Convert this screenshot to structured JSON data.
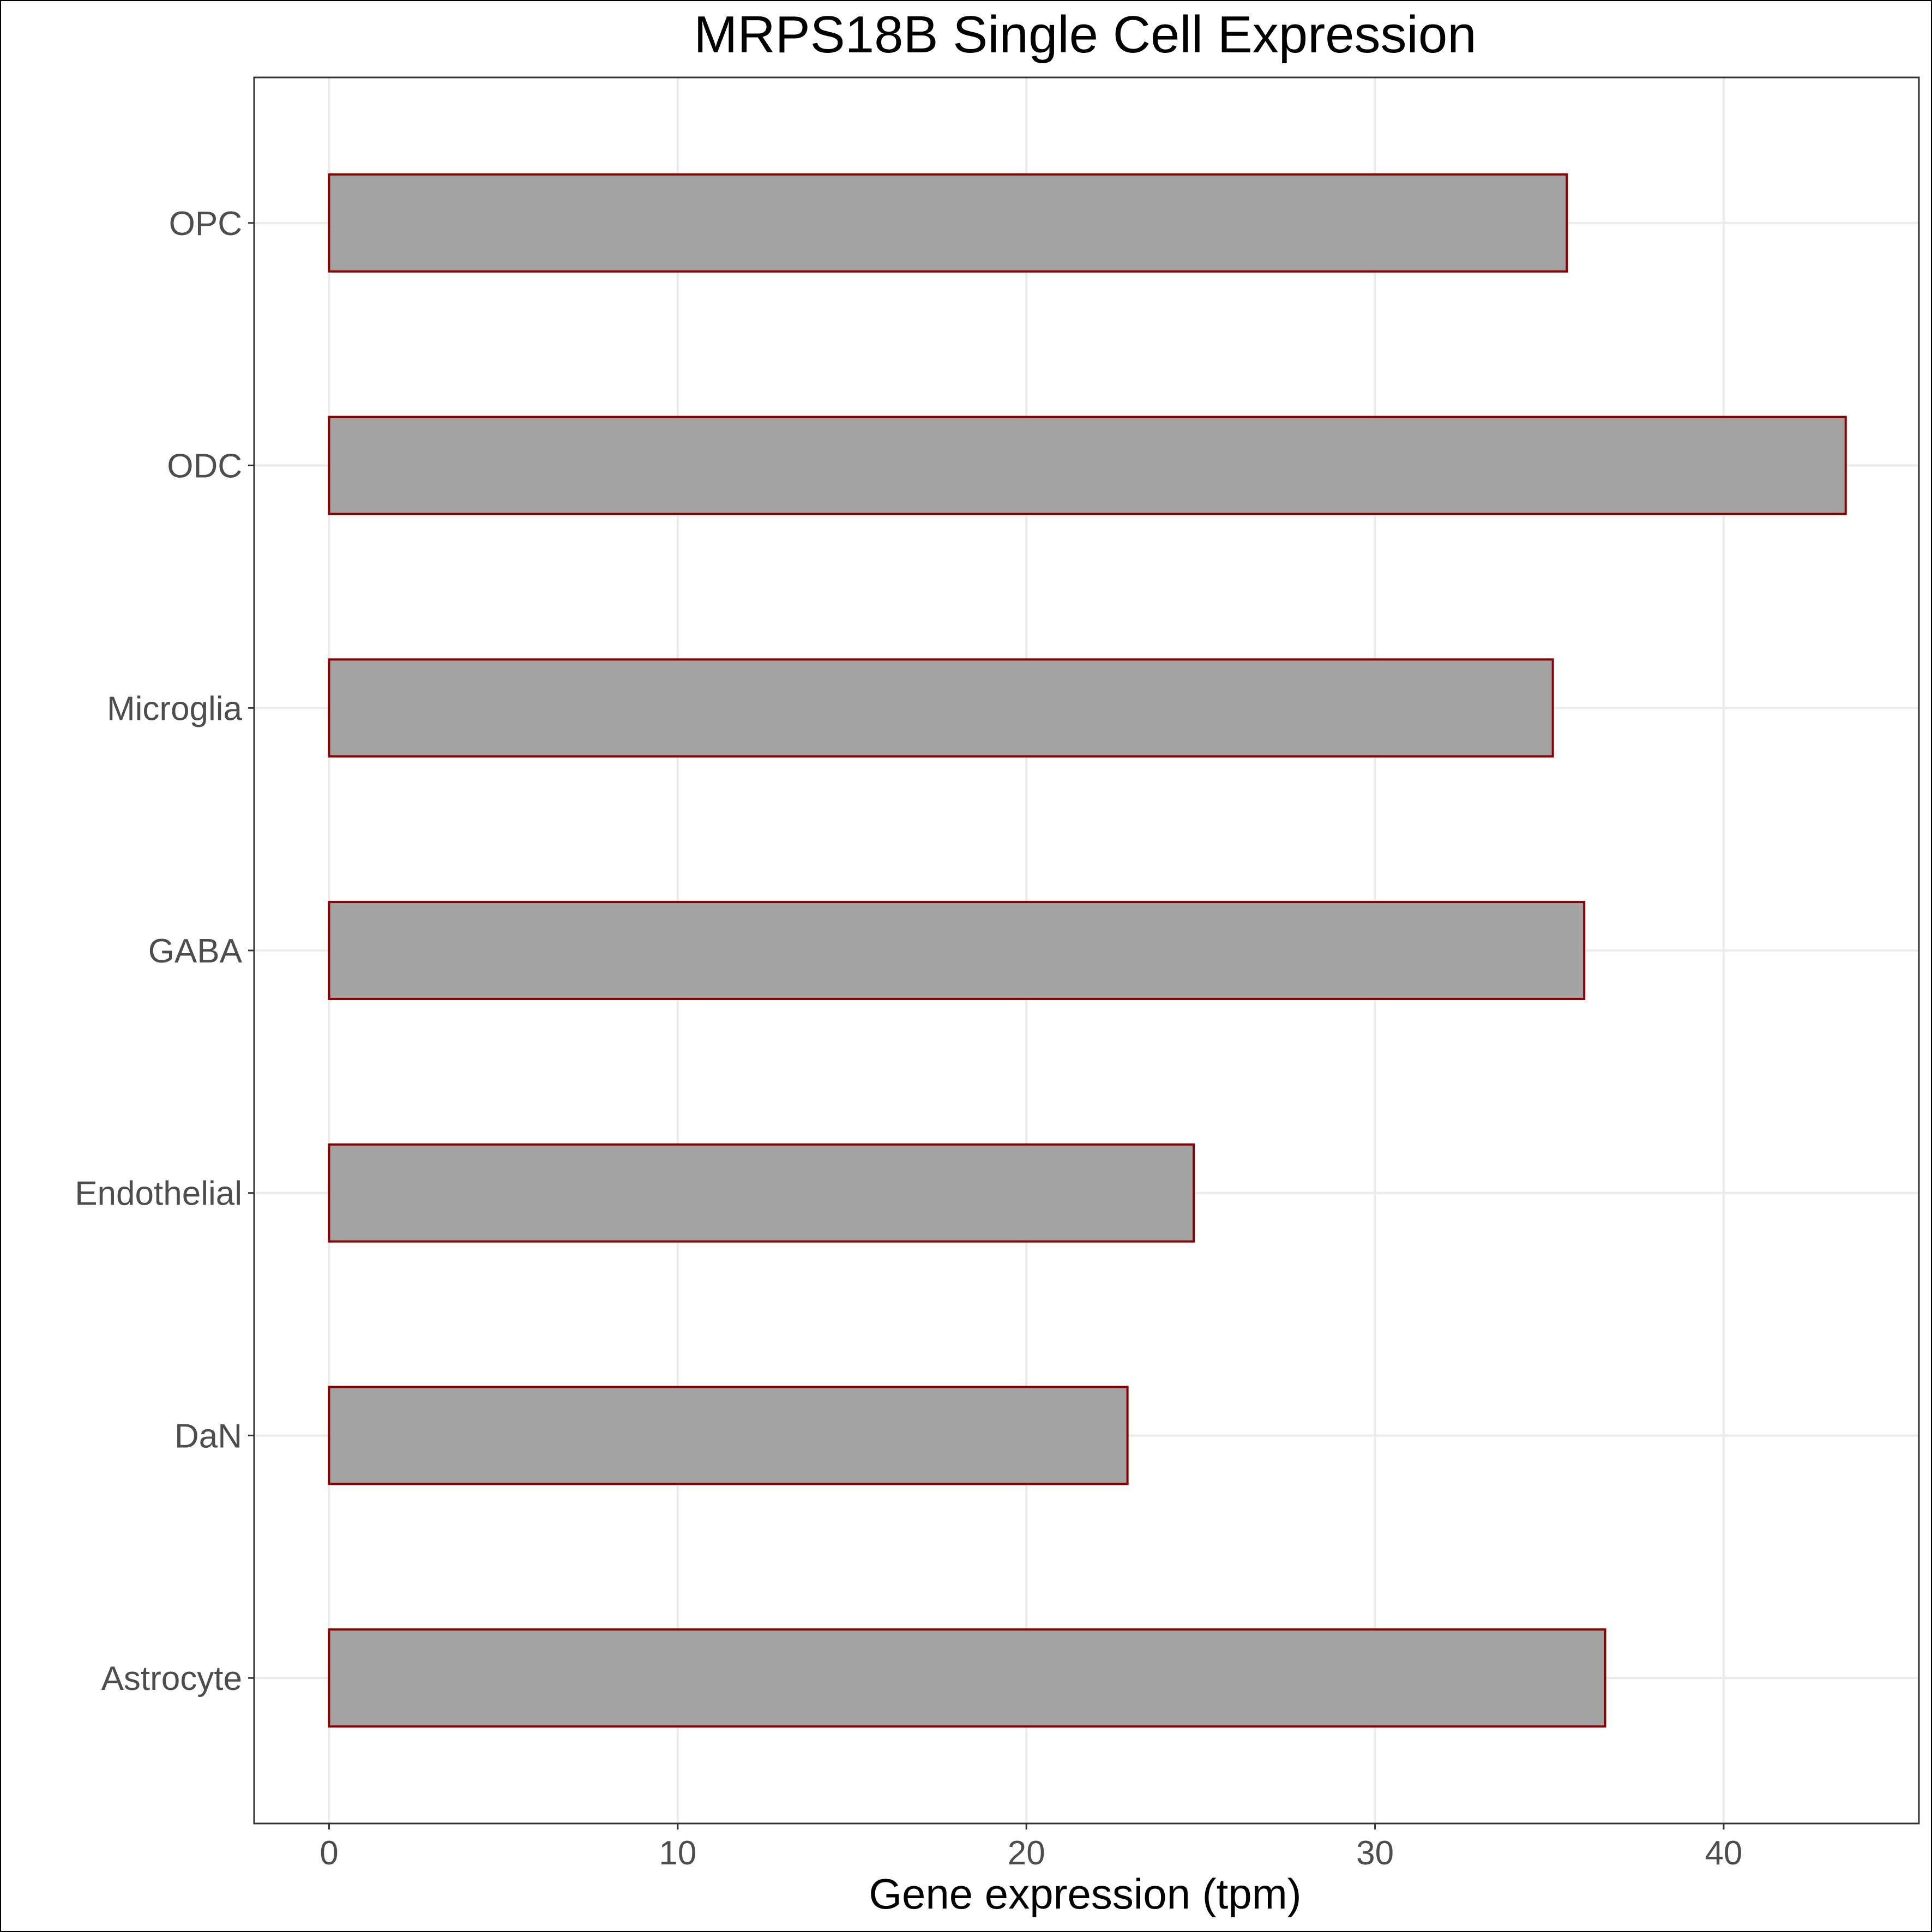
{
  "chart_data": {
    "type": "bar",
    "orientation": "horizontal",
    "title": "MRPS18B Single Cell Expression",
    "xlabel": "Gene expression (tpm)",
    "ylabel": "",
    "categories": [
      "Astrocyte",
      "DaN",
      "Endothelial",
      "GABA",
      "Microglia",
      "ODC",
      "OPC"
    ],
    "values": [
      36.6,
      22.9,
      24.8,
      36.0,
      35.1,
      43.5,
      35.5
    ],
    "xlim": [
      -2.15,
      45.6
    ],
    "xticks": [
      0,
      10,
      20,
      30,
      40
    ],
    "grid": true,
    "legend": "none",
    "colors": {
      "bar_fill": "#a3a3a3",
      "bar_outline": "#8b0000"
    }
  }
}
